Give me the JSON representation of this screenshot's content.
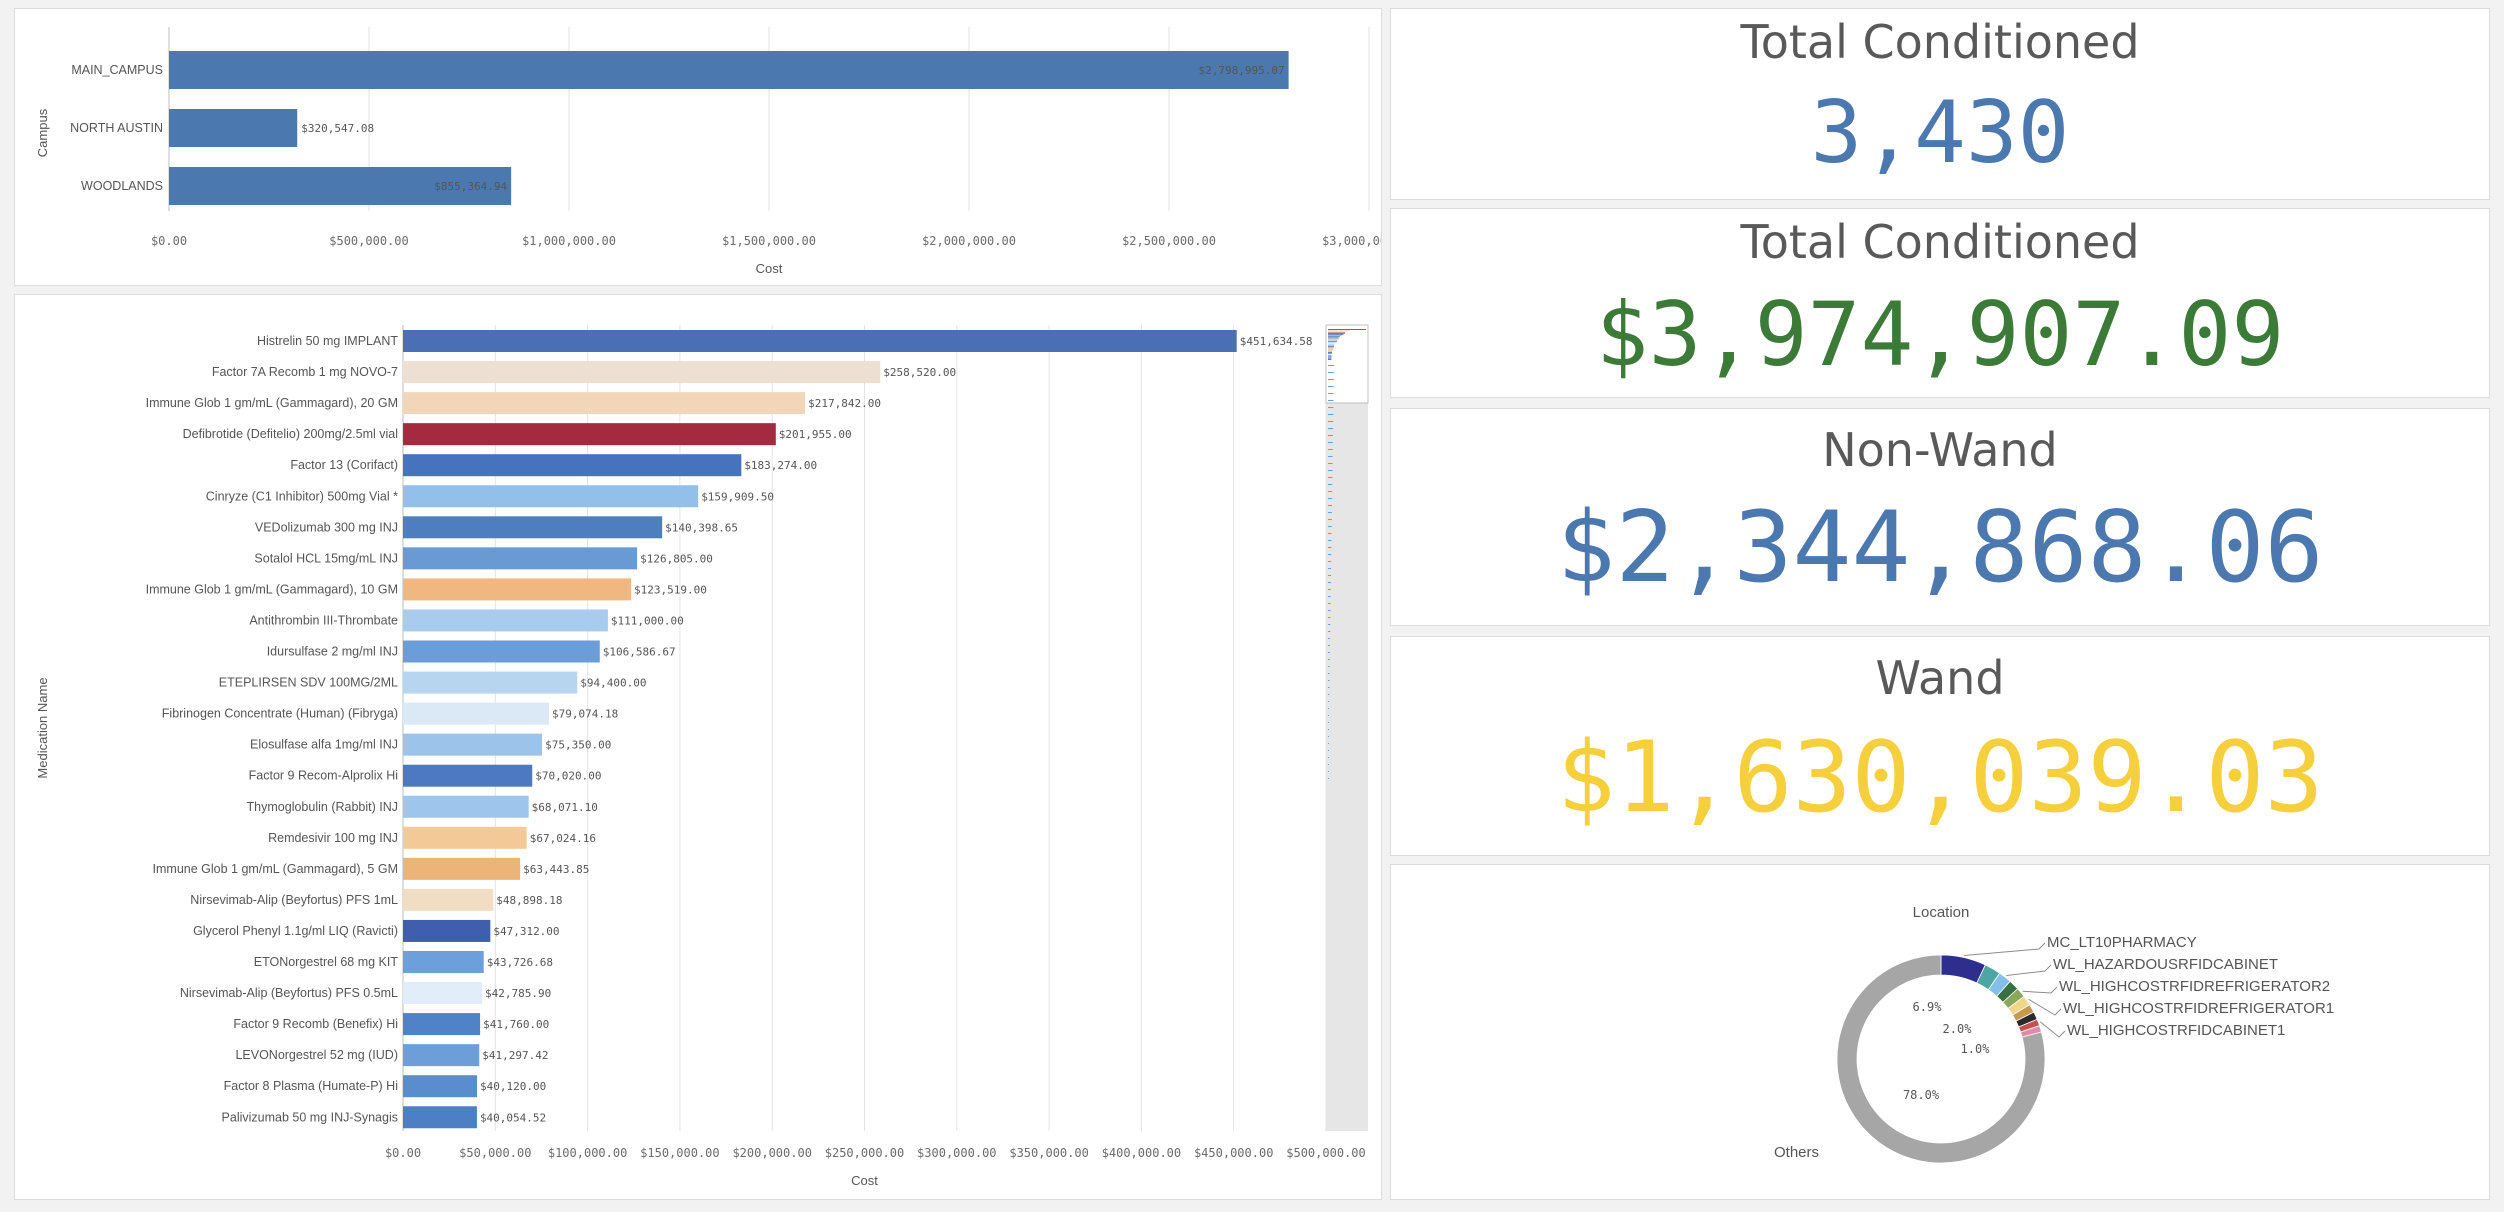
{
  "colors": {
    "blue": "#4c78b0",
    "green": "#3b7a37",
    "yellow": "#f5cf3c",
    "title_gray": "#595959"
  },
  "kpis": [
    {
      "title": "Total Conditioned",
      "value": "3,430",
      "color": "#4c78b0"
    },
    {
      "title": "Total Conditioned",
      "value": "$3,974,907.09",
      "color": "#3b7a37"
    },
    {
      "title": "Non-Wand",
      "value": "$2,344,868.06",
      "color": "#4c78b0"
    },
    {
      "title": "Wand",
      "value": "$1,630,039.03",
      "color": "#f5cf3c"
    }
  ],
  "chart_data": [
    {
      "type": "bar",
      "orientation": "horizontal",
      "xlabel": "Cost",
      "ylabel": "Campus",
      "xlim": [
        0,
        3000000
      ],
      "xticks": [
        "$0.00",
        "$500,000.00",
        "$1,000,000.00",
        "$1,500,000.00",
        "$2,000,000.00",
        "$2,500,000.00",
        "$3,000,000.00"
      ],
      "categories": [
        "MAIN_CAMPUS",
        "NORTH AUSTIN",
        "WOODLANDS"
      ],
      "values": [
        2798995.07,
        320547.08,
        855364.94
      ],
      "labels": [
        "$2,798,995.07",
        "$320,547.08",
        "$855,364.94"
      ],
      "grid": true
    },
    {
      "type": "bar",
      "orientation": "horizontal",
      "xlabel": "Cost",
      "ylabel": "Medication Name",
      "xlim": [
        0,
        500000
      ],
      "xticks": [
        "$0.00",
        "$50,000.00",
        "$100,000.00",
        "$150,000.00",
        "$200,000.00",
        "$250,000.00",
        "$300,000.00",
        "$350,000.00",
        "$400,000.00",
        "$450,000.00",
        "$500,000.00"
      ],
      "grid": true,
      "bars": [
        {
          "name": "Histrelin 50 mg IMPLANT",
          "value": 451634.58,
          "label": "$451,634.58",
          "color": "#4a6fb5"
        },
        {
          "name": "Factor 7A Recomb 1 mg NOVO-7",
          "value": 258520.0,
          "label": "$258,520.00",
          "color": "#ede0d2"
        },
        {
          "name": "Immune Glob 1 gm/mL (Gammagard), 20 GM",
          "value": 217842.0,
          "label": "$217,842.00",
          "color": "#f2d6b8"
        },
        {
          "name": "Defibrotide (Defitelio) 200mg/2.5ml vial",
          "value": 201955.0,
          "label": "$201,955.00",
          "color": "#a42a40"
        },
        {
          "name": "Factor 13 (Corifact)",
          "value": 183274.0,
          "label": "$183,274.00",
          "color": "#4673bd"
        },
        {
          "name": "Cinryze (C1 Inhibitor) 500mg Vial *",
          "value": 159909.5,
          "label": "$159,909.50",
          "color": "#93c0ea"
        },
        {
          "name": "VEDolizumab 300 mg INJ",
          "value": 140398.65,
          "label": "$140,398.65",
          "color": "#4d7ec0"
        },
        {
          "name": "Sotalol HCL 15mg/mL INJ",
          "value": 126805.0,
          "label": "$126,805.00",
          "color": "#6a9ad4"
        },
        {
          "name": "Immune Glob 1 gm/mL (Gammagard), 10 GM",
          "value": 123519.0,
          "label": "$123,519.00",
          "color": "#f0b880"
        },
        {
          "name": "Antithrombin III-Thrombate",
          "value": 111000.0,
          "label": "$111,000.00",
          "color": "#a8cbee"
        },
        {
          "name": "Idursulfase 2 mg/ml INJ",
          "value": 106586.67,
          "label": "$106,586.67",
          "color": "#6b9ed8"
        },
        {
          "name": "ETEPLIRSEN SDV 100MG/2ML",
          "value": 94400.0,
          "label": "$94,400.00",
          "color": "#b6d5f1"
        },
        {
          "name": "Fibrinogen Concentrate (Human) (Fibryga)",
          "value": 79074.18,
          "label": "$79,074.18",
          "color": "#dbe9f7"
        },
        {
          "name": "Elosulfase alfa 1mg/ml INJ",
          "value": 75350.0,
          "label": "$75,350.00",
          "color": "#9cc3ea"
        },
        {
          "name": "Factor 9 Recom-Alprolix Hi",
          "value": 70020.0,
          "label": "$70,020.00",
          "color": "#4c79c1"
        },
        {
          "name": "Thymoglobulin (Rabbit) INJ",
          "value": 68071.1,
          "label": "$68,071.10",
          "color": "#9ec5ec"
        },
        {
          "name": "Remdesivir 100 mg INJ",
          "value": 67024.16,
          "label": "$67,024.16",
          "color": "#f3c998"
        },
        {
          "name": "Immune Glob 1 gm/mL (Gammagard), 5 GM",
          "value": 63443.85,
          "label": "$63,443.85",
          "color": "#edb47a"
        },
        {
          "name": "Nirsevimab-Alip (Beyfortus) PFS 1mL",
          "value": 48898.18,
          "label": "$48,898.18",
          "color": "#f1dcc4"
        },
        {
          "name": "Glycerol Phenyl 1.1g/ml LIQ (Ravicti)",
          "value": 47312.0,
          "label": "$47,312.00",
          "color": "#3f5fae"
        },
        {
          "name": "ETONorgestrel 68 mg KIT",
          "value": 43726.68,
          "label": "$43,726.68",
          "color": "#6da0da"
        },
        {
          "name": "Nirsevimab-Alip (Beyfortus) PFS 0.5mL",
          "value": 42785.9,
          "label": "$42,785.90",
          "color": "#e1eef9"
        },
        {
          "name": "Factor 9 Recomb (Benefix) Hi",
          "value": 41760.0,
          "label": "$41,760.00",
          "color": "#4f82c6"
        },
        {
          "name": "LEVONorgestrel 52 mg (IUD)",
          "value": 41297.42,
          "label": "$41,297.42",
          "color": "#6c9fda"
        },
        {
          "name": "Factor 8 Plasma (Humate-P) Hi",
          "value": 40120.0,
          "label": "$40,120.00",
          "color": "#5a8dce"
        },
        {
          "name": "Palivizumab 50 mg INJ-Synagis",
          "value": 40054.52,
          "label": "$40,054.52",
          "color": "#4d7fc4"
        }
      ]
    },
    {
      "type": "pie",
      "title": "Location",
      "donut": true,
      "slices": [
        {
          "name": "MC_LT10PHARMACY",
          "value": 6.9,
          "color": "#2e2e8e"
        },
        {
          "name": "",
          "value": 2.5,
          "color": "#4ea6a4"
        },
        {
          "name": "WL_HAZARDOUSRFIDCABINET",
          "value": 2.0,
          "color": "#83bfe6"
        },
        {
          "name": "",
          "value": 1.6,
          "color": "#3a7041"
        },
        {
          "name": "WL_HIGHCOSTRFIDREFRIGERATOR2",
          "value": 1.5,
          "color": "#8aa75a"
        },
        {
          "name": "WL_HIGHCOSTRFIDREFRIGERATOR1",
          "value": 1.5,
          "color": "#eed78a"
        },
        {
          "name": "",
          "value": 1.3,
          "color": "#c69a4e"
        },
        {
          "name": "",
          "value": 1.2,
          "color": "#2a2a2a"
        },
        {
          "name": "WL_HIGHCOSTRFIDCABINET1",
          "value": 1.0,
          "color": "#c44f4f"
        },
        {
          "name": "",
          "value": 1.0,
          "color": "#e38aa6"
        },
        {
          "name": "Others",
          "value": 78.0,
          "color": "#a6a6a6"
        }
      ],
      "pct_labels": [
        "6.9%",
        "2.0%",
        "1.0%",
        "78.0%"
      ]
    }
  ]
}
